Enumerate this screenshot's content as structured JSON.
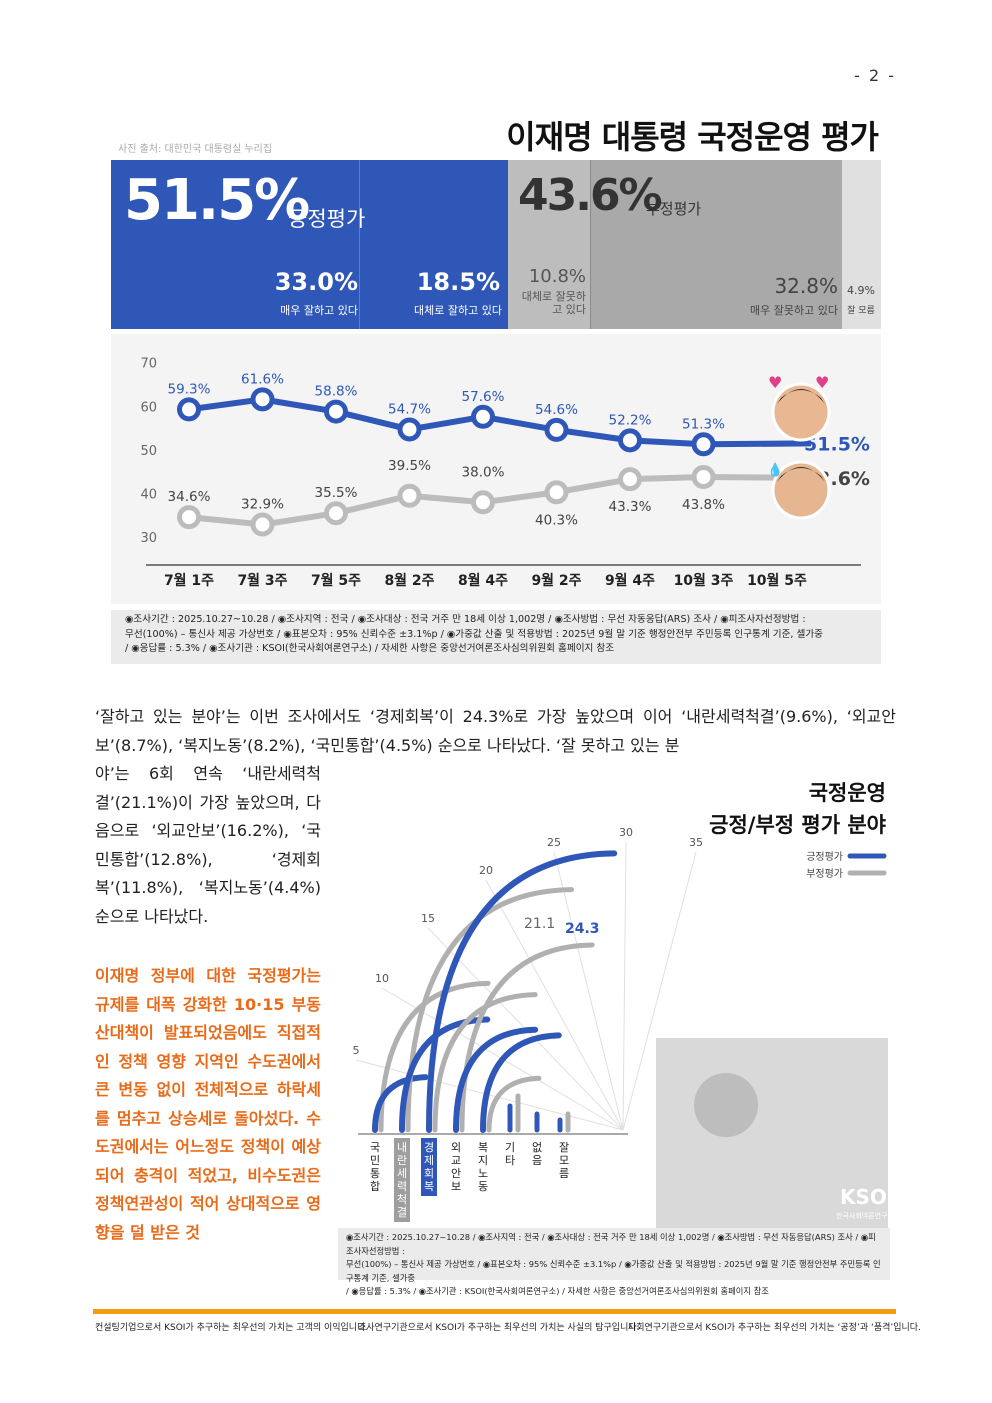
{
  "page_number": "- 2 -",
  "photo_credit": "사진 출처: 대한민국 대통령실 누리집",
  "title": "이재명 대통령 국정운영 평가",
  "summary": {
    "positive": {
      "value": "51.5%",
      "label": "긍정평가"
    },
    "negative": {
      "value": "43.6%",
      "label": "부정평가"
    },
    "breakdown": [
      {
        "value": "33.0%",
        "label": "매우 잘하고 있다"
      },
      {
        "value": "18.5%",
        "label": "대체로 잘하고 있다"
      },
      {
        "value": "10.8%",
        "label": "대체로 잘못하고 있다"
      },
      {
        "value": "32.8%",
        "label": "매우 잘못하고 있다"
      },
      {
        "value": "4.9%",
        "label": "잘 모름"
      }
    ],
    "shares": [
      33.0,
      18.5,
      10.8,
      32.8,
      4.9
    ],
    "colors": {
      "positive": "#2f57b8",
      "negative": "#bdbdbd",
      "unknown": "#e0e0e0"
    }
  },
  "chart_data": [
    {
      "type": "line",
      "categories": [
        "7월 1주",
        "7월 3주",
        "7월 5주",
        "8월 2주",
        "8월 4주",
        "9월 2주",
        "9월 4주",
        "10월 3주",
        "10월 5주"
      ],
      "series": [
        {
          "values": [
            59.3,
            61.6,
            58.8,
            54.7,
            57.6,
            54.6,
            52.2,
            51.3,
            51.5
          ],
          "labels": [
            "59.3%",
            "61.6%",
            "58.8%",
            "54.7%",
            "57.6%",
            "54.6%",
            "52.2%",
            "51.3%",
            "51.5%"
          ],
          "color": "#2f57b8"
        },
        {
          "values": [
            34.6,
            32.9,
            35.5,
            39.5,
            38.0,
            40.3,
            43.3,
            43.8,
            43.6
          ],
          "labels": [
            "34.6%",
            "32.9%",
            "35.5%",
            "39.5%",
            "38.0%",
            "40.3%",
            "43.3%",
            "43.8%",
            "43.6%"
          ],
          "color": "#bcbcbc"
        }
      ],
      "yticks": [
        "70",
        "60",
        "50",
        "40",
        "30"
      ],
      "ylim": [
        25,
        72
      ]
    },
    {
      "type": "bar",
      "title": "국정운영\n긍정/부정 평가 분야",
      "categories": [
        "국민통합",
        "내란세력척결",
        "경제회복",
        "외교안보",
        "복지노동",
        "기타",
        "없음",
        "잘 모름"
      ],
      "series": [
        {
          "name": "긍정평가",
          "values": [
            4.5,
            9.6,
            24.3,
            8.7,
            8.2,
            null,
            null,
            null
          ],
          "color": "#2f57b8"
        },
        {
          "name": "부정평가",
          "values": [
            12.8,
            21.1,
            11.8,
            16.2,
            4.4,
            null,
            null,
            null
          ],
          "color": "#b0b0b0"
        }
      ],
      "labels": [
        "21.1",
        "24.3"
      ],
      "axis_ticks": [
        "5",
        "10",
        "15",
        "20",
        "25",
        "30",
        "35"
      ]
    }
  ],
  "footnote": {
    "line1": "◉조사기간 : 2025.10.27~10.28 / ◉조사지역 : 전국 / ◉조사대상 : 전국 거주 만 18세 이상 1,002명 / ◉조사방법 : 무선 자동응답(ARS) 조사 / ◉피조사자선정방법 :",
    "line2": "무선(100%) – 통신사 제공 가상번호 / ◉표본오차 : 95% 신뢰수준 ±3.1%p / ◉가중값 산출 및 적용방법 : 2025년 9월 말 기준 행정안전부 주민등록 인구통계 기준, 셀가중",
    "line3": "/ ◉응답률 : 5.3% / ◉조사기관 : KSOI(한국사회여론연구소) / 자세한 사항은 중앙선거여론조사심의위원회 홈페이지 참조"
  },
  "paragraph": {
    "top": "‘잘하고 있는 분야’는 이번 조사에서도 ‘경제회복’이 24.3%로 가장 높았으며 이어 ‘내란세력척결’(9.6%), ‘외교안보’(8.7%), ‘복지노동’(8.2%), ‘국민통합’(4.5%) 순으로 나타났다. ‘잘 못하고 있는 분",
    "left": "야’는 6회 연속 ‘내란세력척결’(21.1%)이 가장 높았으며, 다음으로 ‘외교안보’(16.2%), ‘국민통합’(12.8%), ‘경제회복’(11.8%), ‘복지노동’(4.4%) 순으로 나타났다.",
    "orange": "이재명 정부에 대한 국정평가는 규제를 대폭 강화한 10·15 부동산대책이 발표되었음에도 직접적인 정책 영향 지역인 수도권에서 큰 변동 없이 전체적으로 하락세를 멈추고 상승세로 돌아섰다. 수도권에서는 어느정도 정책이 예상되어 충격이 적었고, 비수도권은 정책연관성이 적어 상대적으로 영향을 덜 받은 것"
  },
  "logo": "KSOI",
  "logo_sub": "한국사회여론연구소",
  "footer": [
    "컨설팅기업으로서 KSOI가 추구하는 최우선의 가치는 고객의 이익입니다.",
    "조사연구기관으로서 KSOI가 추구하는 최우선의 가치는 사실의 탐구입니다.",
    "사회연구기관으로서 KSOI가 추구하는 최우선의 가치는 ‘공정’과 ‘품격’입니다."
  ]
}
